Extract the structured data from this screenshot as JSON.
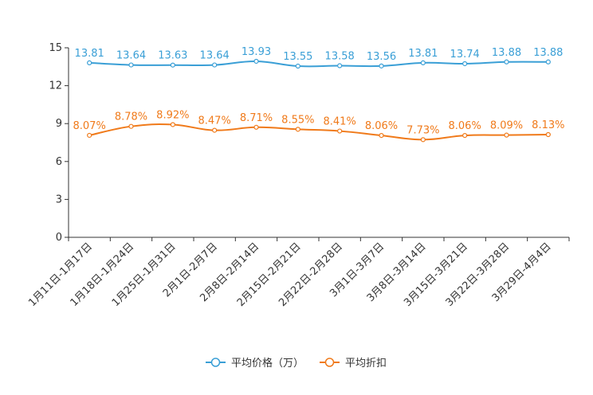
{
  "chart_data": {
    "type": "line",
    "title": "",
    "xlabel": "",
    "ylabel": "",
    "ylim": [
      0,
      15
    ],
    "yticks": [
      "0",
      "3",
      "6",
      "9",
      "12",
      "15"
    ],
    "categories": [
      "1月11日-1月17日",
      "1月18日-1月24日",
      "1月25日-1月31日",
      "2月1日-2月7日",
      "2月8日-2月14日",
      "2月15日-2月21日",
      "2月22日-2月28日",
      "3月1日-3月7日",
      "3月8日-3月14日",
      "3月15日-3月21日",
      "3月22日-3月28日",
      "3月29日-4月4日"
    ],
    "series": [
      {
        "name": "平均价格（万）",
        "color": "#3a9fd6",
        "values": [
          13.81,
          13.64,
          13.63,
          13.64,
          13.93,
          13.55,
          13.58,
          13.56,
          13.81,
          13.74,
          13.88,
          13.88
        ],
        "labels": [
          "13.81",
          "13.64",
          "13.63",
          "13.64",
          "13.93",
          "13.55",
          "13.58",
          "13.56",
          "13.81",
          "13.74",
          "13.88",
          "13.88"
        ]
      },
      {
        "name": "平均折扣",
        "color": "#f07a1a",
        "values": [
          8.07,
          8.78,
          8.92,
          8.47,
          8.71,
          8.55,
          8.41,
          8.06,
          7.73,
          8.06,
          8.09,
          8.13
        ],
        "labels": [
          "8.07%",
          "8.78%",
          "8.92%",
          "8.47%",
          "8.71%",
          "8.55%",
          "8.41%",
          "8.06%",
          "7.73%",
          "8.06%",
          "8.09%",
          "8.13%"
        ]
      }
    ],
    "legend_position": "bottom-center"
  }
}
